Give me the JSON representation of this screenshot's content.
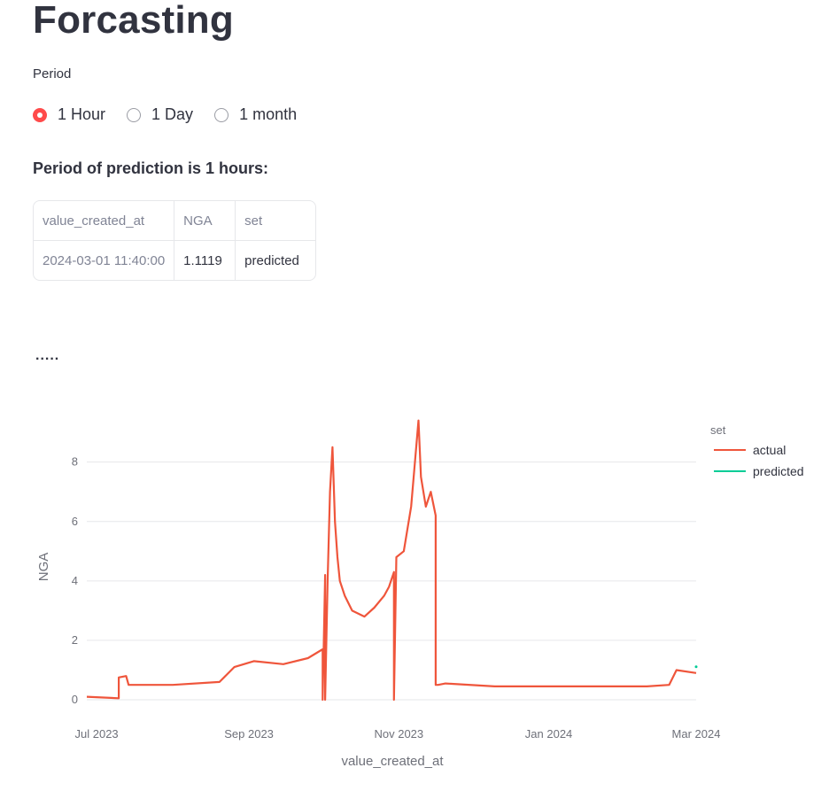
{
  "page": {
    "title": "Forcasting"
  },
  "period": {
    "label": "Period",
    "options": [
      "1 Hour",
      "1 Day",
      "1 month"
    ],
    "selected": "1 Hour"
  },
  "prediction": {
    "heading": "Period of prediction is 1 hours:",
    "table": {
      "headers": [
        "value_created_at",
        "NGA",
        "set"
      ],
      "rows": [
        [
          "2024-03-01 11:40:00",
          "1.1119",
          "predicted"
        ]
      ]
    }
  },
  "ellipsis": ".....",
  "colors": {
    "actual": "#ef553b",
    "predicted": "#00cc96",
    "accent": "#ff4b4b"
  },
  "chart_data": {
    "type": "line",
    "xlabel": "value_created_at",
    "ylabel": "NGA",
    "legend_title": "set",
    "legend_position": "top-right",
    "grid": true,
    "ylim": [
      0,
      9.6
    ],
    "yticks": [
      0,
      2,
      4,
      6,
      8
    ],
    "xlim": [
      "2023-06-27",
      "2024-03-01"
    ],
    "xticks": [
      {
        "date": "2023-07-01",
        "label": "Jul 2023"
      },
      {
        "date": "2023-09-01",
        "label": "Sep 2023"
      },
      {
        "date": "2023-11-01",
        "label": "Nov 2023"
      },
      {
        "date": "2024-01-01",
        "label": "Jan 2024"
      },
      {
        "date": "2024-03-01",
        "label": "Mar 2024"
      }
    ],
    "series": [
      {
        "name": "actual",
        "color": "#ef553b",
        "x": [
          "2023-06-27",
          "2023-07-10",
          "2023-07-10",
          "2023-07-13",
          "2023-07-14",
          "2023-08-01",
          "2023-08-20",
          "2023-08-26",
          "2023-09-03",
          "2023-09-15",
          "2023-09-25",
          "2023-10-01",
          "2023-10-01",
          "2023-10-02",
          "2023-10-02",
          "2023-10-03",
          "2023-10-04",
          "2023-10-05",
          "2023-10-06",
          "2023-10-07",
          "2023-10-08",
          "2023-10-10",
          "2023-10-13",
          "2023-10-18",
          "2023-10-22",
          "2023-10-26",
          "2023-10-28",
          "2023-10-30",
          "2023-10-30",
          "2023-10-31",
          "2023-11-03",
          "2023-11-06",
          "2023-11-09",
          "2023-11-10",
          "2023-11-12",
          "2023-11-14",
          "2023-11-16",
          "2023-11-16",
          "2023-11-17",
          "2023-11-20",
          "2023-12-10",
          "2024-01-10",
          "2024-02-10",
          "2024-02-19",
          "2024-02-22",
          "2024-03-01"
        ],
        "y": [
          0.1,
          0.05,
          0.75,
          0.8,
          0.5,
          0.5,
          0.6,
          1.1,
          1.3,
          1.2,
          1.4,
          1.7,
          0.0,
          4.2,
          0.0,
          4.0,
          7.0,
          8.5,
          6.0,
          4.8,
          4.0,
          3.5,
          3.0,
          2.8,
          3.1,
          3.5,
          3.8,
          4.3,
          0.0,
          4.8,
          5.0,
          6.5,
          9.4,
          7.5,
          6.5,
          7.0,
          6.2,
          0.5,
          0.5,
          0.55,
          0.45,
          0.45,
          0.45,
          0.5,
          1.0,
          0.9
        ]
      },
      {
        "name": "predicted",
        "color": "#00cc96",
        "x": [
          "2024-03-01"
        ],
        "y": [
          1.1119
        ]
      }
    ]
  }
}
